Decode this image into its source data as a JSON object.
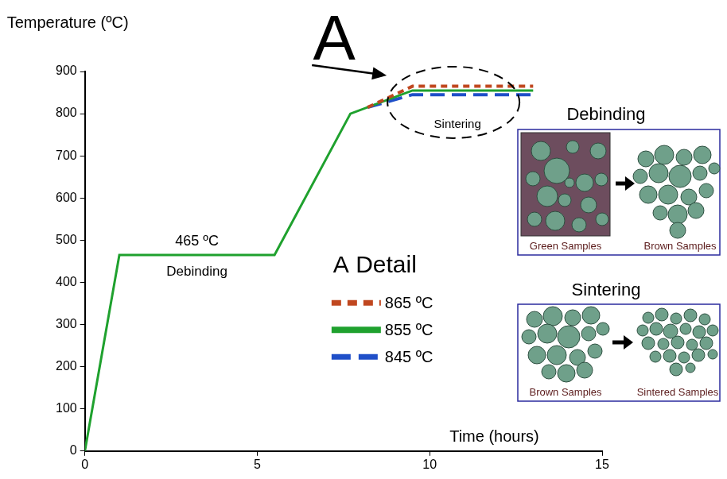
{
  "chart_data": {
    "type": "line",
    "xlabel": "Time (hours)",
    "ylabel": "Temperature (ºC)",
    "xlim": [
      0,
      15
    ],
    "xticks": [
      0,
      5,
      10,
      15
    ],
    "ylim": [
      0,
      900
    ],
    "yticks": [
      0,
      100,
      200,
      300,
      400,
      500,
      600,
      700,
      800,
      900
    ],
    "grid": false,
    "legend": "center",
    "annotations": {
      "debinding_temperature": "465 ºC",
      "debinding": "Debinding",
      "sintering": "Sintering",
      "detail_mark": "A",
      "detail_title": "A Detail"
    },
    "series": [
      {
        "name": "865 ºC",
        "color": "#c0471f",
        "line_style": "dotted",
        "x": [
          8.2,
          9.5,
          13
        ],
        "values": [
          815,
          865,
          865
        ]
      },
      {
        "name": "855 ºC",
        "color": "#1fa12e",
        "line_style": "solid",
        "x": [
          0,
          1,
          5.5,
          7.7,
          9.5,
          13
        ],
        "values": [
          0,
          465,
          465,
          800,
          855,
          855
        ]
      },
      {
        "name": "845 ºC",
        "color": "#1f4fc8",
        "line_style": "dashed",
        "x": [
          8.2,
          9.5,
          13
        ],
        "values": [
          815,
          845,
          845
        ]
      }
    ]
  },
  "schematic": {
    "debinding": {
      "title": "Debinding",
      "before": "Green Samples",
      "after": "Brown Samples"
    },
    "sintering": {
      "title": "Sintering",
      "before": "Brown Samples",
      "after": "Sintered Samples"
    }
  }
}
